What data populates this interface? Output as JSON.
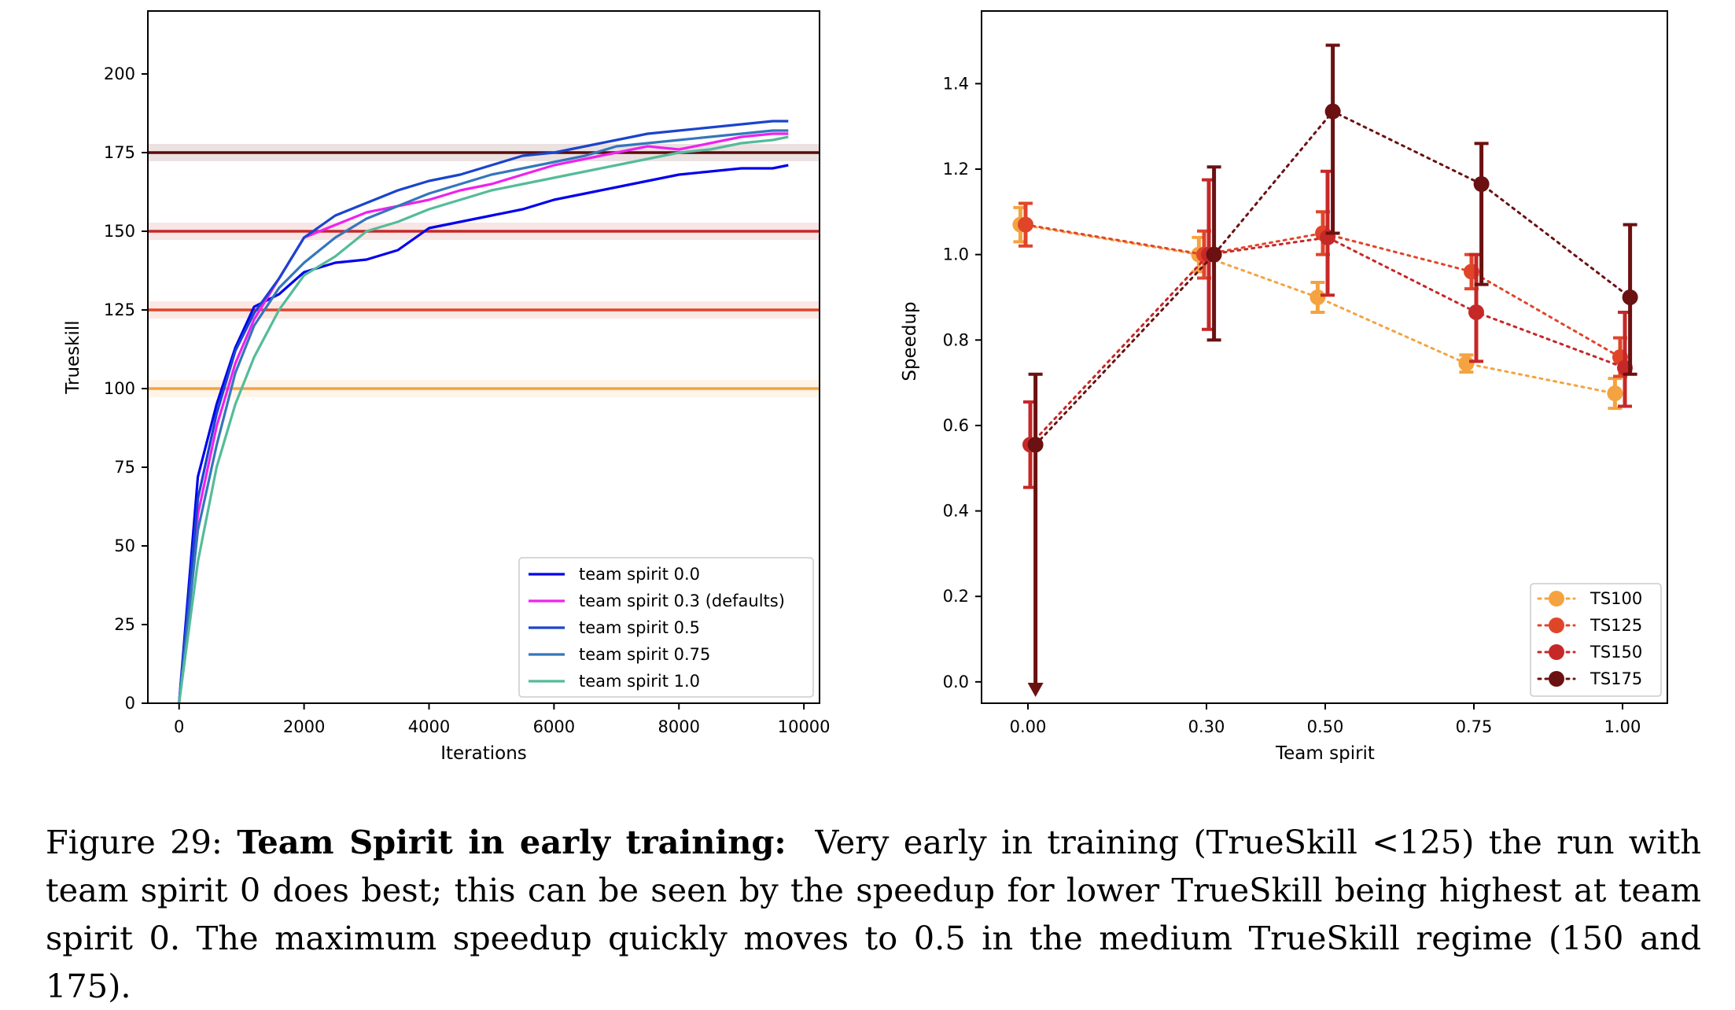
{
  "chart_data": [
    {
      "type": "line",
      "xlabel": "Iterations",
      "ylabel": "Trueskill",
      "xlim": [
        -500,
        10250
      ],
      "ylim": [
        0,
        220
      ],
      "xticks": [
        "0",
        "2000",
        "4000",
        "6000",
        "8000",
        "10000"
      ],
      "yticks": [
        "0",
        "25",
        "50",
        "75",
        "100",
        "125",
        "150",
        "175",
        "200"
      ],
      "grid": false,
      "legend_position": "lower-right",
      "reference_lines": [
        {
          "y": 100,
          "color": "#f4a340"
        },
        {
          "y": 125,
          "color": "#e0452a"
        },
        {
          "y": 150,
          "color": "#c62828"
        },
        {
          "y": 175,
          "color": "#5a0a0a"
        }
      ],
      "series": [
        {
          "name": "team spirit 0.0",
          "color": "#0000ee",
          "x": [
            0,
            300,
            600,
            900,
            1200,
            1600,
            2000,
            2500,
            3000,
            3500,
            4000,
            4500,
            5000,
            5500,
            6000,
            6500,
            7000,
            7500,
            8000,
            8500,
            9000,
            9500,
            9750
          ],
          "y": [
            0,
            72,
            95,
            113,
            126,
            130,
            137,
            140,
            141,
            144,
            151,
            153,
            155,
            157,
            160,
            162,
            164,
            166,
            168,
            169,
            170,
            170,
            171
          ]
        },
        {
          "name": "team spirit 0.3 (defaults)",
          "color": "#ee22ee",
          "x": [
            0,
            300,
            600,
            900,
            1200,
            1600,
            2000,
            2500,
            3000,
            3500,
            4000,
            4500,
            5000,
            5500,
            6000,
            6500,
            7000,
            7500,
            8000,
            8500,
            9000,
            9500,
            9750
          ],
          "y": [
            0,
            60,
            88,
            108,
            122,
            135,
            148,
            152,
            156,
            158,
            160,
            163,
            165,
            168,
            171,
            173,
            175,
            177,
            176,
            178,
            180,
            181,
            181
          ]
        },
        {
          "name": "team spirit 0.5",
          "color": "#1a44cc",
          "x": [
            0,
            300,
            600,
            900,
            1200,
            1600,
            2000,
            2500,
            3000,
            3500,
            4000,
            4500,
            5000,
            5500,
            6000,
            6500,
            7000,
            7500,
            8000,
            8500,
            9000,
            9500,
            9750
          ],
          "y": [
            0,
            65,
            92,
            112,
            124,
            135,
            148,
            155,
            159,
            163,
            166,
            168,
            171,
            174,
            175,
            177,
            179,
            181,
            182,
            183,
            184,
            185,
            185
          ]
        },
        {
          "name": "team spirit 0.75",
          "color": "#3377bb",
          "x": [
            0,
            300,
            600,
            900,
            1200,
            1600,
            2000,
            2500,
            3000,
            3500,
            4000,
            4500,
            5000,
            5500,
            6000,
            6500,
            7000,
            7500,
            8000,
            8500,
            9000,
            9500,
            9750
          ],
          "y": [
            0,
            55,
            82,
            105,
            120,
            132,
            140,
            148,
            154,
            158,
            162,
            165,
            168,
            170,
            172,
            174,
            177,
            178,
            179,
            180,
            181,
            182,
            182
          ]
        },
        {
          "name": "team spirit 1.0",
          "color": "#55bb99",
          "x": [
            0,
            300,
            600,
            900,
            1200,
            1600,
            2000,
            2500,
            3000,
            3500,
            4000,
            4500,
            5000,
            5500,
            6000,
            6500,
            7000,
            7500,
            8000,
            8500,
            9000,
            9500,
            9750
          ],
          "y": [
            0,
            45,
            75,
            95,
            110,
            125,
            136,
            142,
            150,
            153,
            157,
            160,
            163,
            165,
            167,
            169,
            171,
            173,
            175,
            176,
            178,
            179,
            180
          ]
        }
      ]
    },
    {
      "type": "scatter",
      "xlabel": "Team spirit",
      "ylabel": "Speedup",
      "categories": [
        "0.00",
        "0.30",
        "0.50",
        "0.75",
        "1.00"
      ],
      "yticks": [
        "0.0",
        "0.2",
        "0.4",
        "0.6",
        "0.8",
        "1.0",
        "1.2",
        "1.4"
      ],
      "ylim": [
        -0.05,
        1.57
      ],
      "grid": false,
      "legend_position": "lower-right",
      "series": [
        {
          "name": "TS100",
          "color": "#f4a340",
          "offset": -0.08,
          "values": [
            1.07,
            1.0,
            0.9,
            0.745,
            0.675
          ],
          "err_low": [
            0.04,
            0.04,
            0.035,
            0.02,
            0.035
          ],
          "err_high": [
            0.04,
            0.04,
            0.035,
            0.02,
            0.035
          ]
        },
        {
          "name": "TS125",
          "color": "#e0452a",
          "offset": -0.025,
          "values": [
            1.07,
            1.0,
            1.05,
            0.96,
            0.76
          ],
          "err_low": [
            0.05,
            0.055,
            0.05,
            0.04,
            0.045
          ],
          "err_high": [
            0.05,
            0.055,
            0.05,
            0.04,
            0.045
          ]
        },
        {
          "name": "TS150",
          "color": "#c62828",
          "offset": 0.025,
          "values": [
            0.555,
            1.0,
            1.04,
            0.865,
            0.735
          ],
          "err_low": [
            0.1,
            0.175,
            0.135,
            0.115,
            0.09
          ],
          "err_high": [
            0.1,
            0.175,
            0.155,
            0.135,
            0.13
          ]
        },
        {
          "name": "TS175",
          "color": "#6b1111",
          "offset": 0.08,
          "values": [
            0.555,
            1.0,
            1.335,
            1.165,
            0.9
          ],
          "err_low": [
            0.58,
            0.2,
            0.285,
            0.235,
            0.18
          ],
          "err_high": [
            0.165,
            0.205,
            0.155,
            0.095,
            0.17
          ]
        }
      ]
    }
  ],
  "caption": {
    "label": "Figure 29:",
    "bold": "Team Spirit in early training:",
    "text": "Very early in training (TrueSkill <125) the run with team spirit 0 does best; this can be seen by the speedup for lower TrueSkill being highest at team spirit 0.  The maximum speedup quickly moves to 0.5 in the medium TrueSkill regime (150 and 175)."
  }
}
